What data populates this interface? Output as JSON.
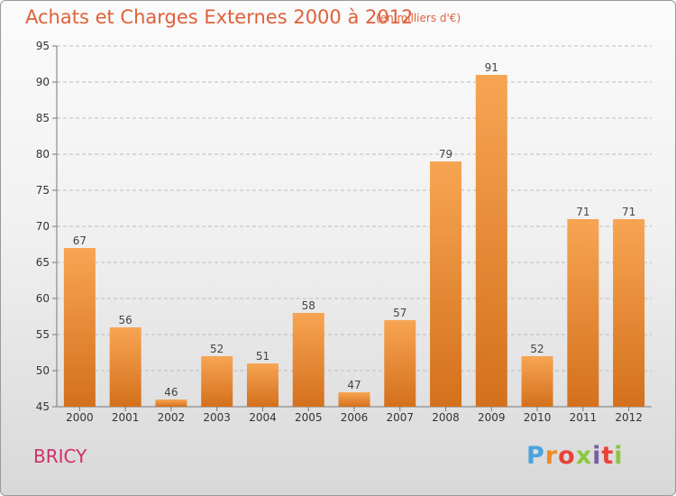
{
  "title": "Achats et Charges Externes 2000 à 2012",
  "subtitle": "(en milliers d'€)",
  "commune": "BRICY",
  "logo": {
    "parts": [
      "P",
      "r",
      "o",
      "x",
      "i",
      "t",
      "i"
    ]
  },
  "colors": {
    "bar_top": "#f7a553",
    "bar_bottom": "#d4701c",
    "title": "#e0603a",
    "commune": "#cf2f6b"
  },
  "chart_data": {
    "type": "bar",
    "title": "Achats et Charges Externes 2000 à 2012",
    "subtitle": "(en milliers d'€)",
    "xlabel": "",
    "ylabel": "",
    "categories": [
      "2000",
      "2001",
      "2002",
      "2003",
      "2004",
      "2005",
      "2006",
      "2007",
      "2008",
      "2009",
      "2010",
      "2011",
      "2012"
    ],
    "values": [
      67,
      56,
      46,
      52,
      51,
      58,
      47,
      57,
      79,
      91,
      52,
      71,
      71
    ],
    "ylim": [
      45,
      95
    ],
    "yticks": [
      45,
      50,
      55,
      60,
      65,
      70,
      75,
      80,
      85,
      90,
      95
    ],
    "grid": true,
    "legend": "none"
  }
}
